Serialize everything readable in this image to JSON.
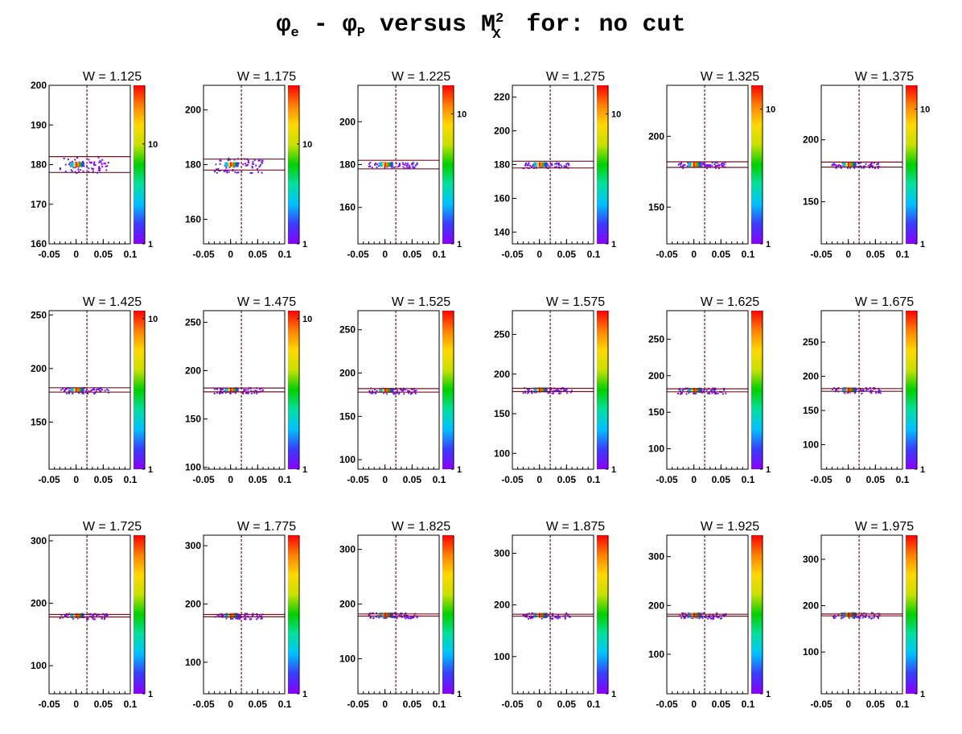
{
  "title": {
    "phi": "φ",
    "sub_e": "e",
    "dash": " - ",
    "sub_p": "P",
    "middle": " versus M",
    "sup_2": "2",
    "sub_x": "X",
    "tail": " for: no cut"
  },
  "colors": {
    "frame": "#000000",
    "cut_band": "#7a1020",
    "vertical_line": "#7a1020",
    "palette": [
      "#8b00ff",
      "#3b3bff",
      "#00bfff",
      "#00e0a0",
      "#00d000",
      "#c8e000",
      "#ffd800",
      "#ff8000",
      "#ff0000"
    ]
  },
  "chart_data": [
    {
      "type": "heatmap",
      "title": "W = 1.125",
      "xlim": [
        -0.05,
        0.1
      ],
      "xticks": [
        "-0.05",
        "0",
        "0.05",
        "0.1"
      ],
      "ylim": [
        160,
        200
      ],
      "yticks": [
        160,
        170,
        180,
        190,
        200
      ],
      "zticks": [
        "1",
        "10"
      ],
      "band": [
        178,
        182
      ],
      "vline_x": 0.02,
      "peak": {
        "x": 0.0,
        "y": 180
      }
    },
    {
      "type": "heatmap",
      "title": "W = 1.175",
      "xlim": [
        -0.05,
        0.1
      ],
      "xticks": [
        "-0.05",
        "0",
        "0.05",
        "0.1"
      ],
      "ylim": [
        151,
        209
      ],
      "yticks": [
        160,
        180,
        200
      ],
      "zticks": [
        "1",
        "10"
      ],
      "band": [
        178,
        182
      ],
      "vline_x": 0.02,
      "peak": {
        "x": 0.0,
        "y": 180
      }
    },
    {
      "type": "heatmap",
      "title": "W = 1.225",
      "xlim": [
        -0.05,
        0.1
      ],
      "xticks": [
        "-0.05",
        "0",
        "0.05",
        "0.1"
      ],
      "ylim": [
        143,
        217
      ],
      "yticks": [
        160,
        180,
        200
      ],
      "zticks": [
        "1",
        "10"
      ],
      "band": [
        178,
        182
      ],
      "vline_x": 0.02,
      "peak": {
        "x": 0.0,
        "y": 180
      }
    },
    {
      "type": "heatmap",
      "title": "W = 1.275",
      "xlim": [
        -0.05,
        0.1
      ],
      "xticks": [
        "-0.05",
        "0",
        "0.05",
        "0.1"
      ],
      "ylim": [
        133,
        227
      ],
      "yticks": [
        140,
        160,
        180,
        200,
        220
      ],
      "zticks": [
        "1",
        "10"
      ],
      "band": [
        178,
        182
      ],
      "vline_x": 0.02,
      "peak": {
        "x": 0.0,
        "y": 180
      }
    },
    {
      "type": "heatmap",
      "title": "W = 1.325",
      "xlim": [
        -0.05,
        0.1
      ],
      "xticks": [
        "-0.05",
        "0",
        "0.05",
        "0.1"
      ],
      "ylim": [
        124,
        236
      ],
      "yticks": [
        150,
        200
      ],
      "zticks": [
        "1",
        "10"
      ],
      "band": [
        178,
        182
      ],
      "vline_x": 0.02,
      "peak": {
        "x": 0.0,
        "y": 180
      }
    },
    {
      "type": "heatmap",
      "title": "W = 1.375",
      "xlim": [
        -0.05,
        0.1
      ],
      "xticks": [
        "-0.05",
        "0",
        "0.05",
        "0.1"
      ],
      "ylim": [
        116,
        244
      ],
      "yticks": [
        150,
        200
      ],
      "zticks": [
        "1",
        "10"
      ],
      "band": [
        178,
        182
      ],
      "vline_x": 0.02,
      "peak": {
        "x": 0.0,
        "y": 180
      }
    },
    {
      "type": "heatmap",
      "title": "W = 1.425",
      "xlim": [
        -0.05,
        0.1
      ],
      "xticks": [
        "-0.05",
        "0",
        "0.05",
        "0.1"
      ],
      "ylim": [
        106,
        254
      ],
      "yticks": [
        150,
        200,
        250
      ],
      "zticks": [
        "1",
        "10"
      ],
      "band": [
        178,
        182
      ],
      "vline_x": 0.02,
      "peak": {
        "x": 0.0,
        "y": 180
      }
    },
    {
      "type": "heatmap",
      "title": "W = 1.475",
      "xlim": [
        -0.05,
        0.1
      ],
      "xticks": [
        "-0.05",
        "0",
        "0.05",
        "0.1"
      ],
      "ylim": [
        98,
        262
      ],
      "yticks": [
        100,
        150,
        200,
        250
      ],
      "zticks": [
        "1",
        "10"
      ],
      "band": [
        178,
        182
      ],
      "vline_x": 0.02,
      "peak": {
        "x": 0.0,
        "y": 180
      }
    },
    {
      "type": "heatmap",
      "title": "W = 1.525",
      "xlim": [
        -0.05,
        0.1
      ],
      "xticks": [
        "-0.05",
        "0",
        "0.05",
        "0.1"
      ],
      "ylim": [
        89,
        272
      ],
      "yticks": [
        100,
        150,
        200,
        250
      ],
      "zticks": [
        "1"
      ],
      "band": [
        178,
        182
      ],
      "vline_x": 0.02,
      "peak": {
        "x": 0.0,
        "y": 180
      }
    },
    {
      "type": "heatmap",
      "title": "W = 1.575",
      "xlim": [
        -0.05,
        0.1
      ],
      "xticks": [
        "-0.05",
        "0",
        "0.05",
        "0.1"
      ],
      "ylim": [
        80,
        280
      ],
      "yticks": [
        100,
        150,
        200,
        250
      ],
      "zticks": [
        "1"
      ],
      "band": [
        178,
        182
      ],
      "vline_x": 0.02,
      "peak": {
        "x": 0.0,
        "y": 180
      }
    },
    {
      "type": "heatmap",
      "title": "W = 1.625",
      "xlim": [
        -0.05,
        0.1
      ],
      "xticks": [
        "-0.05",
        "0",
        "0.05",
        "0.1"
      ],
      "ylim": [
        72,
        289
      ],
      "yticks": [
        100,
        150,
        200,
        250
      ],
      "zticks": [
        "1"
      ],
      "band": [
        178,
        182
      ],
      "vline_x": 0.02,
      "peak": {
        "x": 0.0,
        "y": 180
      }
    },
    {
      "type": "heatmap",
      "title": "W = 1.675",
      "xlim": [
        -0.05,
        0.1
      ],
      "xticks": [
        "-0.05",
        "0",
        "0.05",
        "0.1"
      ],
      "ylim": [
        64,
        296
      ],
      "yticks": [
        100,
        150,
        200,
        250
      ],
      "zticks": [
        "1"
      ],
      "band": [
        178,
        182
      ],
      "vline_x": 0.02,
      "peak": {
        "x": 0.0,
        "y": 180
      }
    },
    {
      "type": "heatmap",
      "title": "W = 1.725",
      "xlim": [
        -0.05,
        0.1
      ],
      "xticks": [
        "-0.05",
        "0",
        "0.05",
        "0.1"
      ],
      "ylim": [
        55,
        309
      ],
      "yticks": [
        100,
        200,
        300
      ],
      "zticks": [
        "1"
      ],
      "band": [
        178,
        182
      ],
      "vline_x": 0.02,
      "peak": {
        "x": 0.0,
        "y": 180
      }
    },
    {
      "type": "heatmap",
      "title": "W = 1.775",
      "xlim": [
        -0.05,
        0.1
      ],
      "xticks": [
        "-0.05",
        "0",
        "0.05",
        "0.1"
      ],
      "ylim": [
        46,
        318
      ],
      "yticks": [
        100,
        200,
        300
      ],
      "zticks": [
        "1"
      ],
      "band": [
        178,
        182
      ],
      "vline_x": 0.02,
      "peak": {
        "x": 0.0,
        "y": 180
      }
    },
    {
      "type": "heatmap",
      "title": "W = 1.825",
      "xlim": [
        -0.05,
        0.1
      ],
      "xticks": [
        "-0.05",
        "0",
        "0.05",
        "0.1"
      ],
      "ylim": [
        36,
        326
      ],
      "yticks": [
        100,
        200,
        300
      ],
      "zticks": [
        "1"
      ],
      "band": [
        178,
        182
      ],
      "vline_x": 0.02,
      "peak": {
        "x": 0.0,
        "y": 180
      }
    },
    {
      "type": "heatmap",
      "title": "W = 1.875",
      "xlim": [
        -0.05,
        0.1
      ],
      "xticks": [
        "-0.05",
        "0",
        "0.05",
        "0.1"
      ],
      "ylim": [
        28,
        335
      ],
      "yticks": [
        100,
        200,
        300
      ],
      "zticks": [
        "1"
      ],
      "band": [
        178,
        182
      ],
      "vline_x": 0.02,
      "peak": {
        "x": 0.0,
        "y": 180
      }
    },
    {
      "type": "heatmap",
      "title": "W = 1.925",
      "xlim": [
        -0.05,
        0.1
      ],
      "xticks": [
        "-0.05",
        "0",
        "0.05",
        "0.1"
      ],
      "ylim": [
        19,
        344
      ],
      "yticks": [
        100,
        200,
        300
      ],
      "zticks": [
        "1"
      ],
      "band": [
        178,
        182
      ],
      "vline_x": 0.02,
      "peak": {
        "x": 0.0,
        "y": 180
      }
    },
    {
      "type": "heatmap",
      "title": "W = 1.975",
      "xlim": [
        -0.05,
        0.1
      ],
      "xticks": [
        "-0.05",
        "0",
        "0.05",
        "0.1"
      ],
      "ylim": [
        10,
        352
      ],
      "yticks": [
        100,
        200,
        300
      ],
      "zticks": [
        "1"
      ],
      "band": [
        178,
        182
      ],
      "vline_x": 0.02,
      "peak": {
        "x": 0.0,
        "y": 180
      }
    }
  ]
}
